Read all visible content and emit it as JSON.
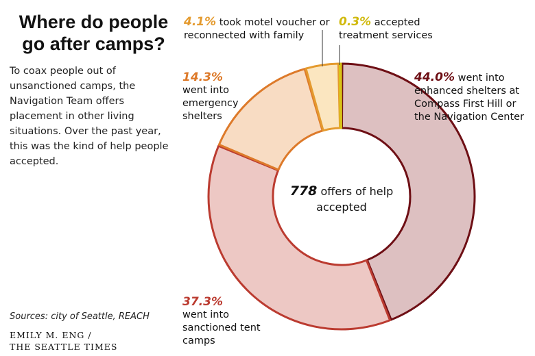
{
  "header": {
    "title": "Where do people go after camps?",
    "intro": "To coax people out of unsanctioned camps, the Navigation Team offers placement in other living situations. Over the past year, this was the kind of help people accepted."
  },
  "footer": {
    "sources": "Sources: city of Seattle, REACH",
    "credit_line1": "EMILY M. ENG /",
    "credit_line2": "THE SEATTLE TIMES"
  },
  "chart_data": {
    "type": "pie",
    "donut": true,
    "title": "Where do people go after camps?",
    "center_value": "778",
    "center_text": "offers of help accepted",
    "total": 778,
    "slices": [
      {
        "id": "enhanced",
        "value": 44.0,
        "label": "44.0%",
        "description": "went into enhanced shelters at Compass First Hill or the Navigation Center",
        "fill": "#ddc0c1",
        "stroke": "#6e0f15",
        "label_color": "#6e0f15"
      },
      {
        "id": "tent",
        "value": 37.3,
        "label": "37.3%",
        "description": "went into sanctioned tent camps",
        "fill": "#edc8c4",
        "stroke": "#bb3b30",
        "label_color": "#bb3b30"
      },
      {
        "id": "emergency",
        "value": 14.3,
        "label": "14.3%",
        "description": "went into emergency shelters",
        "fill": "#f8dcc3",
        "stroke": "#dd7a2a",
        "label_color": "#dd7a2a"
      },
      {
        "id": "motel",
        "value": 4.1,
        "label": "4.1%",
        "description": "took motel voucher or reconnected with family",
        "fill": "#fbe6c0",
        "stroke": "#e49a2e",
        "label_color": "#e49a2e"
      },
      {
        "id": "treatment",
        "value": 0.3,
        "label": "0.3%",
        "description": "accepted treatment services",
        "fill": "#f9ee8e",
        "stroke": "#d8c418",
        "label_color": "#d0b90c"
      }
    ]
  }
}
